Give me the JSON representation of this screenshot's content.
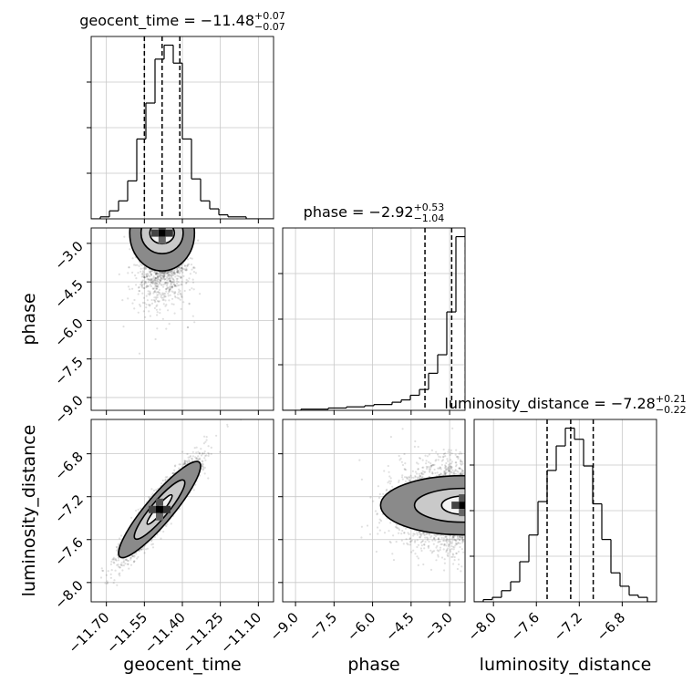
{
  "chart_data": {
    "type": "corner",
    "parameters": [
      "geocent_time",
      "phase",
      "luminosity_distance"
    ],
    "titles": [
      {
        "param": "geocent_time",
        "prefix": "geocent_time = −11.48",
        "plus": "+0.07",
        "minus": "−0.07"
      },
      {
        "param": "phase",
        "prefix": "phase = −2.92",
        "plus": "+0.53",
        "minus": "−1.04"
      },
      {
        "param": "luminosity_distance",
        "prefix": "luminosity_distance = −7.28",
        "plus": "+0.21",
        "minus": "−0.22"
      }
    ],
    "axis_labels": {
      "x": [
        "geocent_time",
        "phase",
        "luminosity_distance"
      ],
      "y": [
        "phase",
        "luminosity_distance"
      ]
    },
    "ticks": {
      "geocent_time": {
        "values": [
          -11.7,
          -11.55,
          -11.4,
          -11.25,
          -11.1
        ],
        "labels": [
          "−11.70",
          "−11.55",
          "−11.40",
          "−11.25",
          "−11.10"
        ]
      },
      "phase": {
        "values": [
          -9.0,
          -7.5,
          -6.0,
          -4.5,
          -3.0
        ],
        "labels": [
          "−9.0",
          "−7.5",
          "−6.0",
          "−4.5",
          "−3.0"
        ]
      },
      "luminosity_distance": {
        "values": [
          -8.0,
          -7.6,
          -7.2,
          -6.8
        ],
        "labels": [
          "−8.0",
          "−7.6",
          "−7.2",
          "−6.8"
        ]
      }
    },
    "ranges": {
      "geocent_time": [
        -11.76,
        -11.04
      ],
      "phase": [
        -9.5,
        -2.4
      ],
      "luminosity_distance": [
        -8.18,
        -6.48
      ]
    },
    "quantiles": {
      "geocent_time": [
        -11.55,
        -11.48,
        -11.41
      ],
      "phase": [
        -3.96,
        -2.92,
        -2.39
      ],
      "luminosity_distance": [
        -7.5,
        -7.28,
        -7.07
      ]
    },
    "histograms": {
      "geocent_time": {
        "bin_edges": [
          -11.76,
          -11.724,
          -11.688,
          -11.652,
          -11.616,
          -11.58,
          -11.544,
          -11.508,
          -11.472,
          -11.436,
          -11.4,
          -11.364,
          -11.328,
          -11.292,
          -11.256,
          -11.22,
          -11.184,
          -11.148,
          -11.112,
          -11.076,
          -11.04
        ],
        "counts": [
          0,
          1,
          4,
          9,
          19,
          40,
          58,
          80,
          87,
          78,
          40,
          20,
          9,
          5,
          2,
          1,
          1,
          0,
          0,
          0
        ]
      },
      "phase": {
        "bin_edges": [
          -9.5,
          -9.145,
          -8.79,
          -8.435,
          -8.08,
          -7.725,
          -7.37,
          -7.015,
          -6.66,
          -6.305,
          -5.95,
          -5.595,
          -5.24,
          -4.885,
          -4.53,
          -4.175,
          -3.82,
          -3.465,
          -3.11,
          -2.755,
          -2.4
        ],
        "counts": [
          0,
          0,
          1,
          1,
          1,
          2,
          2,
          3,
          3,
          4,
          5,
          5,
          7,
          9,
          13,
          18,
          32,
          48,
          85,
          150
        ]
      },
      "luminosity_distance": {
        "bin_edges": [
          -8.18,
          -8.095,
          -8.01,
          -7.925,
          -7.84,
          -7.755,
          -7.67,
          -7.585,
          -7.5,
          -7.415,
          -7.33,
          -7.245,
          -7.16,
          -7.075,
          -6.99,
          -6.905,
          -6.82,
          -6.735,
          -6.65,
          -6.565,
          -6.48
        ],
        "counts": [
          0,
          1,
          2,
          5,
          9,
          18,
          30,
          45,
          59,
          70,
          78,
          73,
          61,
          44,
          28,
          13,
          7,
          3,
          2,
          0
        ]
      }
    },
    "density_peaks": {
      "geocent_time_vs_phase": {
        "x": -11.48,
        "y": -2.6
      },
      "geocent_time_vs_luminosity_distance": {
        "x": -11.49,
        "y": -7.32
      },
      "phase_vs_luminosity_distance": {
        "x": -2.5,
        "y": -7.28
      }
    },
    "line_color": "#000000",
    "grid": true
  }
}
